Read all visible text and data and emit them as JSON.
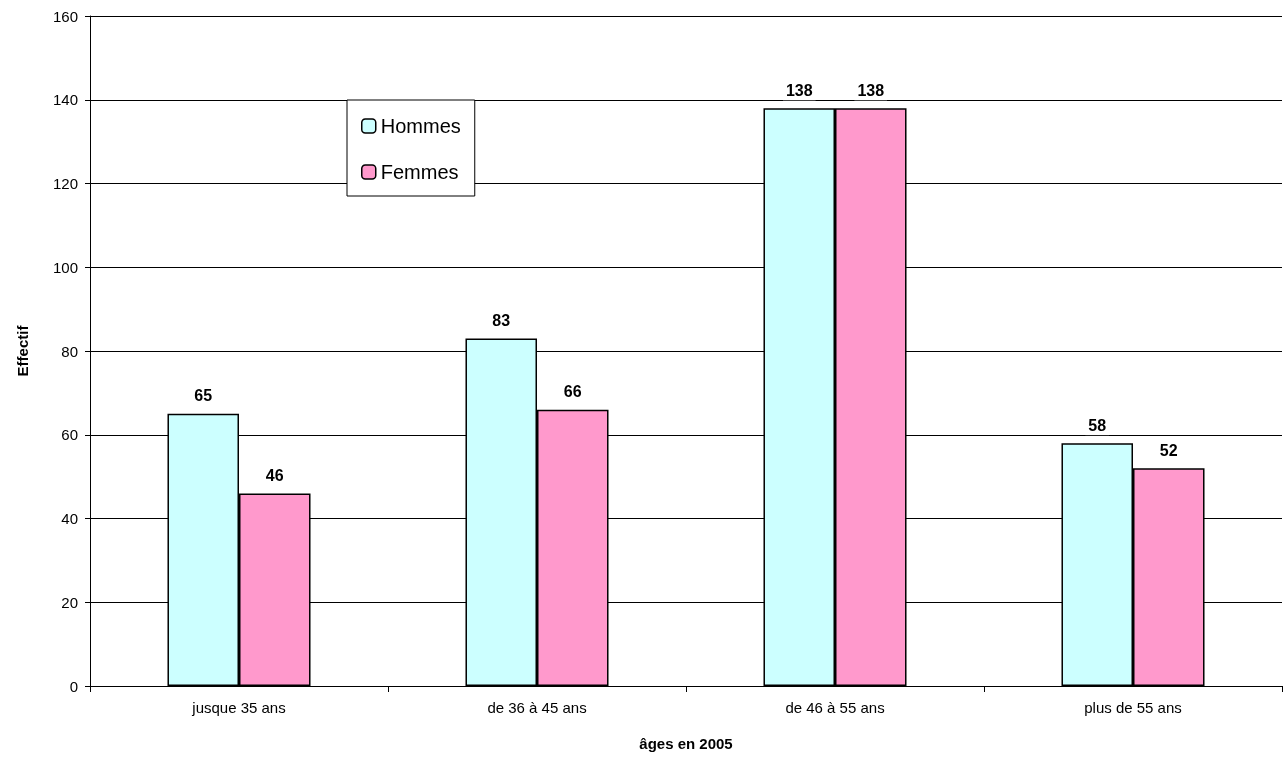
{
  "chart_data": {
    "type": "bar",
    "xlabel": "âges en 2005",
    "ylabel": "Effectif",
    "categories": [
      "jusque 35 ans",
      "de 36 à 45 ans",
      "de 46 à 55 ans",
      "plus de 55 ans"
    ],
    "series": [
      {
        "name": "Hommes",
        "color": "#ccffff",
        "values": [
          65,
          83,
          138,
          58
        ]
      },
      {
        "name": "Femmes",
        "color": "#ff99cc",
        "values": [
          46,
          66,
          138,
          52
        ]
      }
    ],
    "ylim": [
      0,
      160
    ],
    "yticks": [
      0,
      20,
      40,
      60,
      80,
      100,
      120,
      140,
      160
    ],
    "grid": "y",
    "legend": "top left",
    "data_labels": true
  }
}
